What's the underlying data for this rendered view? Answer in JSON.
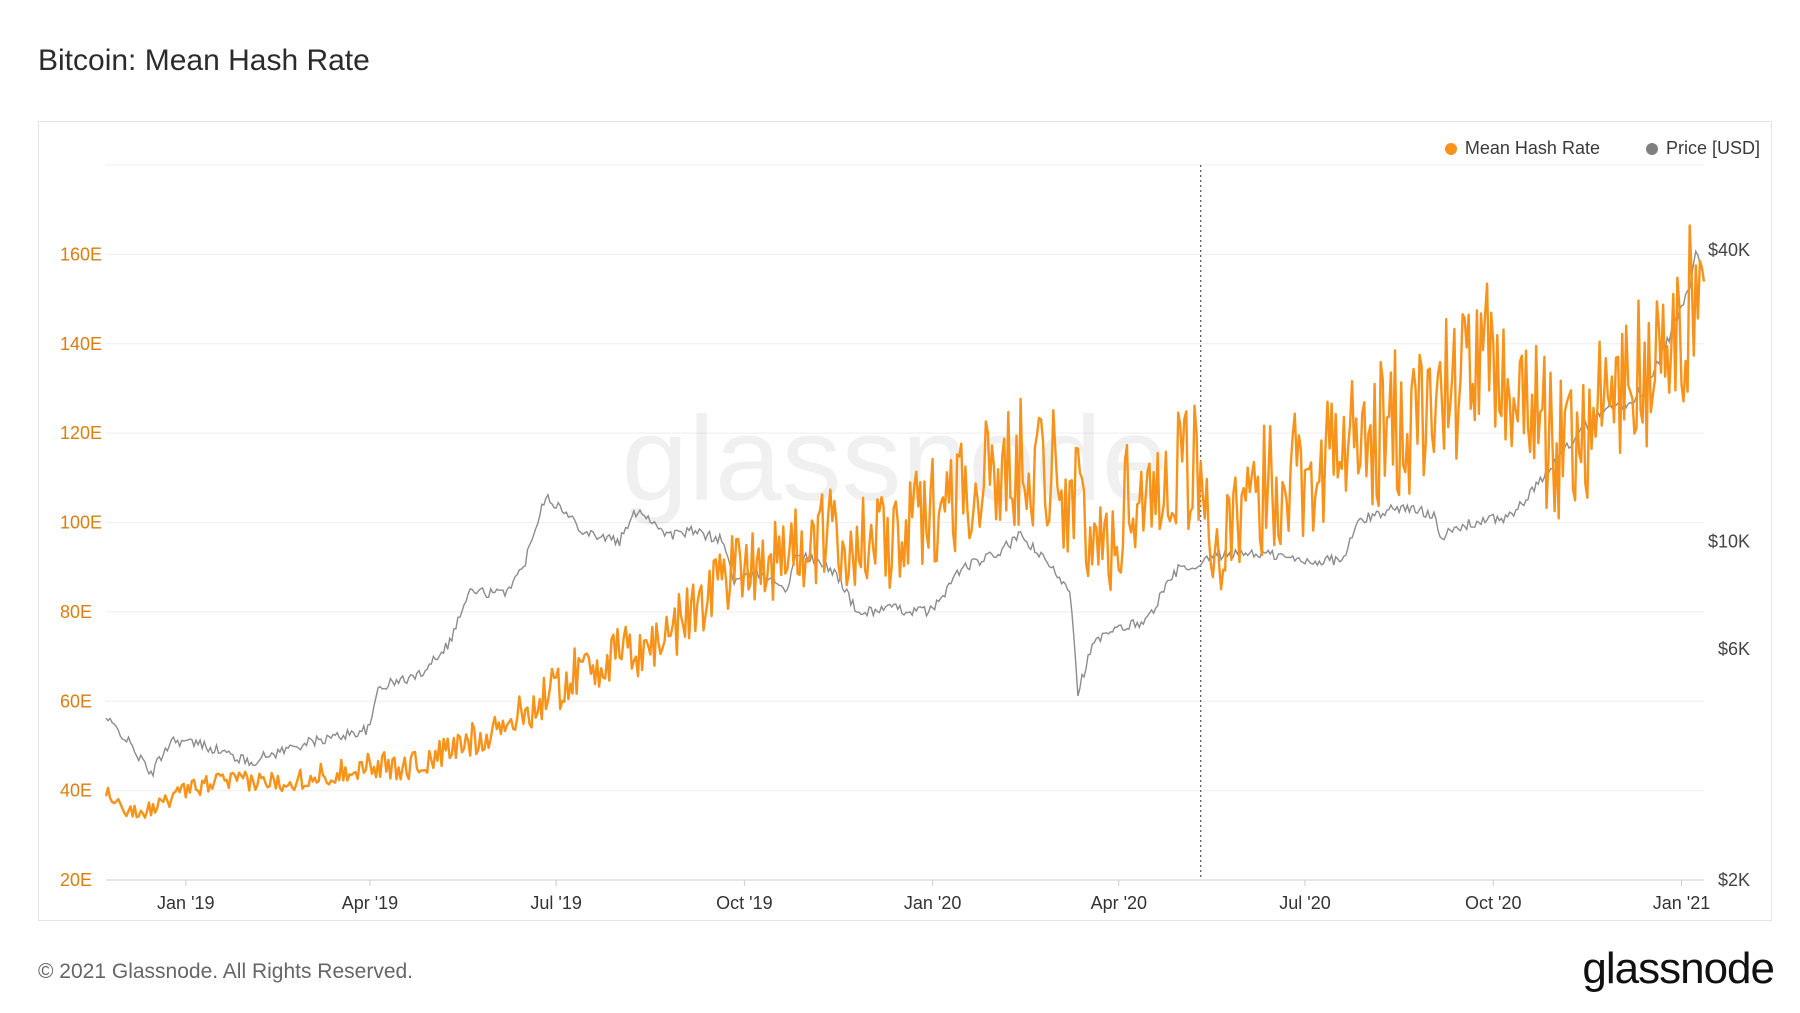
{
  "title": "Bitcoin: Mean Hash Rate",
  "footer": "© 2021 Glassnode. All Rights Reserved.",
  "brand": "glassnode",
  "watermark": "glassnode",
  "colors": {
    "hash": "#f7931a",
    "price": "#8c8c8c",
    "grid": "#eeeeee",
    "hash_axis": "#d97e0f",
    "price_axis": "#444444"
  },
  "chart_data": {
    "type": "line",
    "x_range": [
      "2018-11-23",
      "2021-01-12"
    ],
    "x_ticks": [
      {
        "date": "2019-01-01",
        "label": "Jan '19"
      },
      {
        "date": "2019-04-01",
        "label": "Apr '19"
      },
      {
        "date": "2019-07-01",
        "label": "Jul '19"
      },
      {
        "date": "2019-10-01",
        "label": "Oct '19"
      },
      {
        "date": "2020-01-01",
        "label": "Jan '20"
      },
      {
        "date": "2020-04-01",
        "label": "Apr '20"
      },
      {
        "date": "2020-07-01",
        "label": "Jul '20"
      },
      {
        "date": "2020-10-01",
        "label": "Oct '20"
      },
      {
        "date": "2021-01-01",
        "label": "Jan '21"
      }
    ],
    "y_left": {
      "unit": "E",
      "range": [
        20,
        180
      ],
      "ticks": [
        {
          "value": 20,
          "label": "20E"
        },
        {
          "value": 40,
          "label": "40E"
        },
        {
          "value": 60,
          "label": "60E"
        },
        {
          "value": 80,
          "label": "80E"
        },
        {
          "value": 100,
          "label": "100E"
        },
        {
          "value": 120,
          "label": "120E"
        },
        {
          "value": 140,
          "label": "140E"
        },
        {
          "value": 160,
          "label": "160E"
        }
      ]
    },
    "y_right": {
      "scale": "log",
      "range": [
        2000,
        60000
      ],
      "ticks": [
        {
          "value": 2000,
          "label": "$2K"
        },
        {
          "value": 6000,
          "label": "$6K"
        },
        {
          "value": 10000,
          "label": "$10K"
        },
        {
          "value": 40000,
          "label": "$40K"
        }
      ]
    },
    "annotation_line_date": "2020-05-11",
    "grid": true,
    "legend_position": "top-right",
    "series": [
      {
        "name": "Mean Hash Rate",
        "axis": "left",
        "color": "#f7931a",
        "points": [
          [
            "2018-11-23",
            40
          ],
          [
            "2018-12-01",
            36
          ],
          [
            "2018-12-10",
            35
          ],
          [
            "2018-12-20",
            37
          ],
          [
            "2019-01-01",
            40
          ],
          [
            "2019-01-15",
            42
          ],
          [
            "2019-02-01",
            42
          ],
          [
            "2019-02-15",
            42
          ],
          [
            "2019-03-01",
            43
          ],
          [
            "2019-03-15",
            44
          ],
          [
            "2019-04-01",
            46
          ],
          [
            "2019-04-15",
            45
          ],
          [
            "2019-05-01",
            47
          ],
          [
            "2019-05-15",
            50
          ],
          [
            "2019-06-01",
            54
          ],
          [
            "2019-06-15",
            57
          ],
          [
            "2019-07-01",
            63
          ],
          [
            "2019-07-15",
            68
          ],
          [
            "2019-08-01",
            70
          ],
          [
            "2019-08-15",
            72
          ],
          [
            "2019-09-01",
            78
          ],
          [
            "2019-09-15",
            86
          ],
          [
            "2019-10-01",
            92
          ],
          [
            "2019-10-15",
            92
          ],
          [
            "2019-11-01",
            95
          ],
          [
            "2019-11-15",
            97
          ],
          [
            "2019-12-01",
            95
          ],
          [
            "2019-12-15",
            96
          ],
          [
            "2020-01-01",
            103
          ],
          [
            "2020-01-15",
            108
          ],
          [
            "2020-02-01",
            110
          ],
          [
            "2020-02-15",
            115
          ],
          [
            "2020-03-01",
            112
          ],
          [
            "2020-03-15",
            100
          ],
          [
            "2020-03-25",
            92
          ],
          [
            "2020-04-05",
            105
          ],
          [
            "2020-04-20",
            108
          ],
          [
            "2020-05-01",
            115
          ],
          [
            "2020-05-11",
            110
          ],
          [
            "2020-05-20",
            92
          ],
          [
            "2020-06-01",
            100
          ],
          [
            "2020-06-15",
            110
          ],
          [
            "2020-07-01",
            112
          ],
          [
            "2020-07-15",
            116
          ],
          [
            "2020-08-01",
            118
          ],
          [
            "2020-08-15",
            122
          ],
          [
            "2020-09-01",
            125
          ],
          [
            "2020-09-15",
            133
          ],
          [
            "2020-10-01",
            135
          ],
          [
            "2020-10-15",
            130
          ],
          [
            "2020-11-01",
            115
          ],
          [
            "2020-11-15",
            122
          ],
          [
            "2020-12-01",
            130
          ],
          [
            "2020-12-15",
            133
          ],
          [
            "2021-01-01",
            140
          ],
          [
            "2021-01-08",
            155
          ],
          [
            "2021-01-12",
            150
          ]
        ]
      },
      {
        "name": "Price [USD]",
        "axis": "right",
        "color": "#8c8c8c",
        "points": [
          [
            "2018-11-23",
            4300
          ],
          [
            "2018-12-01",
            4000
          ],
          [
            "2018-12-15",
            3300
          ],
          [
            "2018-12-25",
            3900
          ],
          [
            "2019-01-10",
            3800
          ],
          [
            "2019-02-01",
            3500
          ],
          [
            "2019-02-25",
            3800
          ],
          [
            "2019-03-15",
            3950
          ],
          [
            "2019-04-01",
            4100
          ],
          [
            "2019-04-05",
            5000
          ],
          [
            "2019-04-25",
            5300
          ],
          [
            "2019-05-10",
            6200
          ],
          [
            "2019-05-20",
            7900
          ],
          [
            "2019-06-05",
            7800
          ],
          [
            "2019-06-15",
            8800
          ],
          [
            "2019-06-26",
            12500
          ],
          [
            "2019-07-05",
            11500
          ],
          [
            "2019-07-15",
            10500
          ],
          [
            "2019-08-01",
            10000
          ],
          [
            "2019-08-10",
            11700
          ],
          [
            "2019-08-25",
            10300
          ],
          [
            "2019-09-05",
            10500
          ],
          [
            "2019-09-20",
            10100
          ],
          [
            "2019-09-26",
            8300
          ],
          [
            "2019-10-10",
            8600
          ],
          [
            "2019-10-22",
            8000
          ],
          [
            "2019-10-27",
            9500
          ],
          [
            "2019-11-15",
            8600
          ],
          [
            "2019-11-25",
            7100
          ],
          [
            "2019-12-10",
            7300
          ],
          [
            "2019-12-20",
            7200
          ],
          [
            "2020-01-01",
            7200
          ],
          [
            "2020-01-15",
            8800
          ],
          [
            "2020-02-01",
            9400
          ],
          [
            "2020-02-13",
            10300
          ],
          [
            "2020-02-25",
            9100
          ],
          [
            "2020-03-08",
            8000
          ],
          [
            "2020-03-12",
            4900
          ],
          [
            "2020-03-20",
            6200
          ],
          [
            "2020-04-01",
            6600
          ],
          [
            "2020-04-15",
            6900
          ],
          [
            "2020-04-30",
            8800
          ],
          [
            "2020-05-10",
            8700
          ],
          [
            "2020-05-15",
            9300
          ],
          [
            "2020-06-01",
            9500
          ],
          [
            "2020-06-15",
            9400
          ],
          [
            "2020-07-01",
            9100
          ],
          [
            "2020-07-20",
            9200
          ],
          [
            "2020-07-27",
            11000
          ],
          [
            "2020-08-15",
            11800
          ],
          [
            "2020-09-03",
            11400
          ],
          [
            "2020-09-05",
            10200
          ],
          [
            "2020-09-20",
            10900
          ],
          [
            "2020-10-10",
            11300
          ],
          [
            "2020-10-21",
            12800
          ],
          [
            "2020-11-05",
            15500
          ],
          [
            "2020-11-24",
            19000
          ],
          [
            "2020-12-05",
            19200
          ],
          [
            "2020-12-16",
            21000
          ],
          [
            "2020-12-27",
            27000
          ],
          [
            "2021-01-05",
            33000
          ],
          [
            "2021-01-08",
            40000
          ],
          [
            "2021-01-12",
            35000
          ]
        ]
      }
    ]
  }
}
